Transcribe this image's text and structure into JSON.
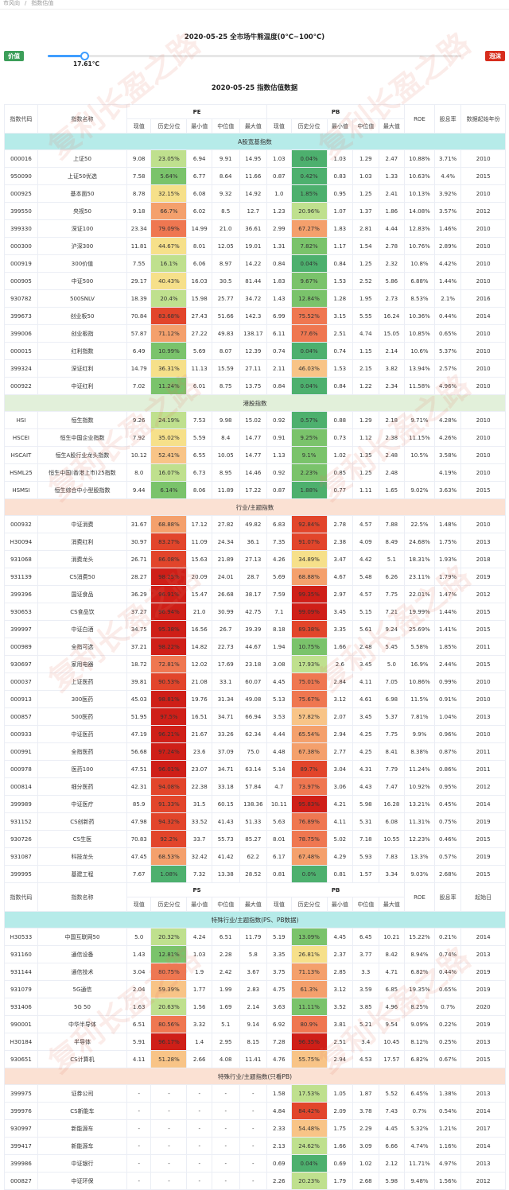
{
  "breadcrumb": {
    "home": "市风向",
    "sep": "/",
    "current": "指数估值"
  },
  "temperature": {
    "title": "2020-05-25 全市场牛熊温度(0°C~100°C)",
    "left_label": "价值",
    "right_label": "泡沫",
    "value_text": "17.61°C",
    "value": 17.61
  },
  "table_title": "2020-05-25 指数估值数据",
  "watermarks": [
    "复利长盈之路",
    "复利长盈之路",
    "复利长盈之路",
    "复利长盈之路",
    "复利长盈之路",
    "复利长盈之路",
    "复利长盈之路",
    "复利长盈之路"
  ],
  "colors": {
    "deep_green": "#4db06e",
    "green": "#7ac36b",
    "light_green": "#bfe08e",
    "yellow": "#f6e08a",
    "light_orange": "#f8c487",
    "orange": "#f4a06c",
    "light_red": "#ef7751",
    "red": "#e2452b",
    "deep_red": "#cf1f18"
  },
  "header1": {
    "code": "指数代码",
    "name": "指数名称",
    "pe": "PE",
    "pb": "PB",
    "roe": "ROE",
    "div": "股息率",
    "start": "数据起始年份"
  },
  "header_sub": [
    "现值",
    "历史分位",
    "最小值",
    "中位值",
    "最大值",
    "现值",
    "历史分位",
    "最小值",
    "中位值",
    "最大值"
  ],
  "header2": {
    "code": "指数代码",
    "name": "指数名称",
    "ps": "PS",
    "pb": "PB",
    "roe": "ROE",
    "div": "股息率",
    "start": "起始日"
  },
  "sections": [
    {
      "title": "A股宽基指数",
      "color": "cyan",
      "rows": [
        [
          "000016",
          "上证50",
          "9.08",
          "23.05%",
          "6.94",
          "9.91",
          "14.95",
          "1.03",
          "0.04%",
          "1.03",
          "1.29",
          "2.47",
          "10.88%",
          "3.71%",
          "2010"
        ],
        [
          "950090",
          "上证50优选",
          "7.58",
          "5.64%",
          "6.77",
          "8.64",
          "11.66",
          "0.87",
          "0.42%",
          "0.83",
          "1.03",
          "1.33",
          "10.63%",
          "4.4%",
          "2015"
        ],
        [
          "000925",
          "基本面50",
          "8.78",
          "32.15%",
          "6.08",
          "9.32",
          "14.92",
          "1.0",
          "1.85%",
          "0.95",
          "1.25",
          "2.41",
          "10.13%",
          "3.92%",
          "2010"
        ],
        [
          "399550",
          "央视50",
          "9.18",
          "66.7%",
          "6.02",
          "8.5",
          "12.7",
          "1.23",
          "20.96%",
          "1.07",
          "1.37",
          "1.86",
          "14.08%",
          "3.57%",
          "2012"
        ],
        [
          "399330",
          "深证100",
          "23.34",
          "79.09%",
          "14.99",
          "21.0",
          "36.61",
          "2.99",
          "67.27%",
          "1.83",
          "2.81",
          "4.44",
          "12.83%",
          "1.46%",
          "2010"
        ],
        [
          "000300",
          "沪深300",
          "11.81",
          "44.67%",
          "8.01",
          "12.05",
          "19.01",
          "1.31",
          "7.82%",
          "1.17",
          "1.54",
          "2.78",
          "10.76%",
          "2.89%",
          "2010"
        ],
        [
          "000919",
          "300价值",
          "7.55",
          "16.1%",
          "6.06",
          "8.97",
          "14.22",
          "0.84",
          "0.04%",
          "0.84",
          "1.25",
          "2.32",
          "10.8%",
          "4.42%",
          "2010"
        ],
        [
          "000905",
          "中证500",
          "29.17",
          "40.43%",
          "16.03",
          "30.5",
          "81.44",
          "1.83",
          "9.67%",
          "1.53",
          "2.52",
          "5.86",
          "6.88%",
          "1.44%",
          "2010"
        ],
        [
          "930782",
          "500SNLV",
          "18.39",
          "20.4%",
          "15.98",
          "25.77",
          "34.72",
          "1.43",
          "12.84%",
          "1.28",
          "1.95",
          "2.73",
          "8.53%",
          "2.1%",
          "2016"
        ],
        [
          "399673",
          "创业板50",
          "70.84",
          "83.68%",
          "27.43",
          "51.66",
          "142.3",
          "6.99",
          "75.52%",
          "3.15",
          "5.55",
          "16.24",
          "10.36%",
          "0.44%",
          "2014"
        ],
        [
          "399006",
          "创业板指",
          "57.87",
          "71.12%",
          "27.22",
          "49.83",
          "138.17",
          "6.11",
          "77.6%",
          "2.51",
          "4.74",
          "15.05",
          "10.85%",
          "0.65%",
          "2010"
        ],
        [
          "000015",
          "红利指数",
          "6.49",
          "10.99%",
          "5.69",
          "8.07",
          "12.39",
          "0.74",
          "0.04%",
          "0.74",
          "1.15",
          "2.14",
          "10.6%",
          "5.37%",
          "2010"
        ],
        [
          "399324",
          "深证红利",
          "14.79",
          "36.31%",
          "11.13",
          "15.59",
          "27.11",
          "2.11",
          "46.03%",
          "1.53",
          "2.15",
          "3.82",
          "13.94%",
          "2.57%",
          "2010"
        ],
        [
          "000922",
          "中证红利",
          "7.02",
          "11.24%",
          "6.01",
          "8.75",
          "13.75",
          "0.84",
          "0.04%",
          "0.84",
          "1.22",
          "2.34",
          "11.58%",
          "4.96%",
          "2010"
        ]
      ]
    },
    {
      "title": "港股指数",
      "color": "green",
      "rows": [
        [
          "HSI",
          "恒生指数",
          "9.26",
          "24.19%",
          "7.53",
          "9.98",
          "15.02",
          "0.92",
          "0.57%",
          "0.88",
          "1.29",
          "2.18",
          "9.71%",
          "4.28%",
          "2010"
        ],
        [
          "HSCEI",
          "恒生中国企业指数",
          "7.92",
          "35.02%",
          "5.59",
          "8.4",
          "14.77",
          "0.91",
          "9.25%",
          "0.73",
          "1.12",
          "2.38",
          "11.15%",
          "4.26%",
          "2010"
        ],
        [
          "HSCAIT",
          "恒生A股行业龙头指数",
          "10.12",
          "52.41%",
          "6.55",
          "10.05",
          "14.77",
          "1.13",
          "9.1%",
          "1.02",
          "1.35",
          "2.48",
          "10.5%",
          "3.58%",
          "2010"
        ],
        [
          "HSML25",
          "恒生中国(香港上市)25指数",
          "8.0",
          "16.07%",
          "6.73",
          "8.95",
          "14.46",
          "0.92",
          "2.23%",
          "0.85",
          "1.25",
          "2.48",
          "",
          "4.19%",
          "2010"
        ],
        [
          "HSMSI",
          "恒生综合中小型股指数",
          "9.44",
          "6.14%",
          "8.06",
          "11.89",
          "17.22",
          "0.87",
          "1.88%",
          "0.77",
          "1.11",
          "1.65",
          "9.02%",
          "3.63%",
          "2015"
        ]
      ]
    },
    {
      "title": "行业/主题指数",
      "color": "peach",
      "rows": [
        [
          "000932",
          "中证消费",
          "31.67",
          "68.88%",
          "17.12",
          "27.82",
          "49.82",
          "6.83",
          "92.84%",
          "2.78",
          "4.57",
          "7.88",
          "22.5%",
          "1.48%",
          "2010"
        ],
        [
          "H30094",
          "消费红利",
          "30.97",
          "83.27%",
          "11.09",
          "24.34",
          "36.1",
          "7.35",
          "91.07%",
          "2.38",
          "4.09",
          "8.49",
          "24.68%",
          "1.75%",
          "2013"
        ],
        [
          "931068",
          "消费龙头",
          "26.71",
          "86.08%",
          "15.63",
          "21.89",
          "27.13",
          "4.26",
          "34.89%",
          "3.47",
          "4.42",
          "5.1",
          "18.31%",
          "1.93%",
          "2018"
        ],
        [
          "931139",
          "CS消费50",
          "28.27",
          "98.25%",
          "20.09",
          "24.01",
          "28.7",
          "5.69",
          "68.88%",
          "4.67",
          "5.48",
          "6.26",
          "23.11%",
          "1.79%",
          "2019"
        ],
        [
          "399396",
          "国证食品",
          "36.29",
          "96.91%",
          "15.47",
          "26.68",
          "38.17",
          "7.59",
          "99.35%",
          "2.97",
          "4.57",
          "7.75",
          "22.01%",
          "1.47%",
          "2012"
        ],
        [
          "930653",
          "CS食品饮",
          "37.27",
          "96.94%",
          "21.0",
          "30.99",
          "42.75",
          "7.1",
          "99.09%",
          "3.45",
          "5.15",
          "7.21",
          "19.99%",
          "1.44%",
          "2015"
        ],
        [
          "399997",
          "中证白酒",
          "34.75",
          "95.38%",
          "16.56",
          "26.7",
          "39.39",
          "8.18",
          "89.38%",
          "3.35",
          "5.61",
          "9.24",
          "25.69%",
          "1.41%",
          "2015"
        ],
        [
          "000989",
          "全指可选",
          "37.21",
          "98.22%",
          "14.82",
          "22.73",
          "44.67",
          "1.94",
          "10.75%",
          "1.66",
          "2.48",
          "5.45",
          "5.58%",
          "1.85%",
          "2011"
        ],
        [
          "930697",
          "家用电器",
          "18.72",
          "72.81%",
          "12.02",
          "17.69",
          "23.18",
          "3.08",
          "17.93%",
          "2.6",
          "3.45",
          "5.0",
          "16.9%",
          "2.44%",
          "2015"
        ],
        [
          "000037",
          "上证医药",
          "39.81",
          "90.53%",
          "21.08",
          "33.1",
          "60.07",
          "4.45",
          "75.01%",
          "2.84",
          "4.11",
          "7.05",
          "10.86%",
          "0.99%",
          "2010"
        ],
        [
          "000913",
          "300医药",
          "45.03",
          "98.81%",
          "19.76",
          "31.34",
          "49.08",
          "5.13",
          "75.67%",
          "3.12",
          "4.61",
          "6.98",
          "11.5%",
          "0.91%",
          "2010"
        ],
        [
          "000857",
          "500医药",
          "51.95",
          "97.5%",
          "16.51",
          "34.71",
          "66.94",
          "3.53",
          "57.82%",
          "2.07",
          "3.45",
          "5.37",
          "7.81%",
          "1.04%",
          "2013"
        ],
        [
          "000933",
          "中证医药",
          "47.19",
          "96.21%",
          "21.67",
          "33.26",
          "62.34",
          "4.44",
          "65.54%",
          "2.94",
          "4.25",
          "7.75",
          "9.9%",
          "0.96%",
          "2010"
        ],
        [
          "000991",
          "全指医药",
          "56.68",
          "97.24%",
          "23.6",
          "37.09",
          "75.0",
          "4.48",
          "67.38%",
          "2.77",
          "4.25",
          "8.41",
          "8.38%",
          "0.87%",
          "2011"
        ],
        [
          "000978",
          "医药100",
          "47.51",
          "96.01%",
          "23.07",
          "34.71",
          "63.14",
          "5.14",
          "89.7%",
          "3.04",
          "4.31",
          "7.79",
          "11.24%",
          "0.86%",
          "2011"
        ],
        [
          "000814",
          "细分医药",
          "42.31",
          "94.08%",
          "22.38",
          "33.18",
          "57.84",
          "4.7",
          "73.97%",
          "3.06",
          "4.43",
          "7.47",
          "10.92%",
          "0.95%",
          "2012"
        ],
        [
          "399989",
          "中证医疗",
          "85.9",
          "91.33%",
          "31.5",
          "60.15",
          "138.36",
          "10.11",
          "95.83%",
          "4.21",
          "5.98",
          "16.28",
          "13.21%",
          "0.45%",
          "2014"
        ],
        [
          "931152",
          "CS创新药",
          "47.98",
          "94.32%",
          "33.52",
          "41.43",
          "51.33",
          "5.63",
          "76.89%",
          "4.11",
          "5.31",
          "6.08",
          "11.31%",
          "0.75%",
          "2019"
        ],
        [
          "930726",
          "CS生医",
          "70.83",
          "92.2%",
          "33.7",
          "55.73",
          "85.27",
          "8.01",
          "78.75%",
          "5.02",
          "7.18",
          "10.55",
          "12.23%",
          "0.46%",
          "2015"
        ],
        [
          "931087",
          "科技龙头",
          "47.45",
          "68.53%",
          "32.42",
          "41.42",
          "62.2",
          "6.17",
          "67.48%",
          "4.29",
          "5.93",
          "7.83",
          "13.3%",
          "0.57%",
          "2019"
        ],
        [
          "399995",
          "基建工程",
          "7.67",
          "1.08%",
          "7.32",
          "13.38",
          "28.52",
          "0.81",
          "0.0%",
          "0.81",
          "1.57",
          "3.34",
          "9.03%",
          "2.68%",
          "2015"
        ]
      ]
    },
    {
      "title": "特殊行业/主题指数(PS、PB数据)",
      "color": "cyan",
      "header2": true,
      "rows": [
        [
          "H30533",
          "中国互联网50",
          "5.0",
          "20.32%",
          "4.24",
          "6.51",
          "11.79",
          "5.19",
          "13.09%",
          "4.45",
          "6.45",
          "10.21",
          "15.22%",
          "0.21%",
          "2014"
        ],
        [
          "931160",
          "通信设备",
          "1.43",
          "12.81%",
          "1.03",
          "2.28",
          "5.8",
          "3.35",
          "26.81%",
          "2.37",
          "3.77",
          "8.42",
          "8.94%",
          "0.74%",
          "2013"
        ],
        [
          "931144",
          "通信技术",
          "3.04",
          "80.75%",
          "1.9",
          "2.42",
          "3.67",
          "3.75",
          "71.13%",
          "2.85",
          "3.3",
          "4.71",
          "6.82%",
          "0.44%",
          "2019"
        ],
        [
          "931079",
          "5G通信",
          "2.04",
          "59.39%",
          "1.77",
          "1.99",
          "2.83",
          "4.75",
          "61.3%",
          "3.12",
          "3.59",
          "6.85",
          "19.35%",
          "0.65%",
          "2019"
        ],
        [
          "931406",
          "5G 50",
          "1.63",
          "20.63%",
          "1.56",
          "1.69",
          "2.14",
          "3.63",
          "11.11%",
          "3.52",
          "3.85",
          "4.96",
          "8.25%",
          "0.7%",
          "2020"
        ],
        [
          "990001",
          "中华半导体",
          "6.51",
          "80.56%",
          "3.32",
          "5.1",
          "9.14",
          "6.92",
          "80.9%",
          "3.81",
          "5.21",
          "9.54",
          "9.09%",
          "0.22%",
          "2019"
        ],
        [
          "H30184",
          "半导体",
          "5.91",
          "96.17%",
          "1.4",
          "2.95",
          "8.15",
          "7.28",
          "96.35%",
          "2.51",
          "3.4",
          "10.45",
          "8.12%",
          "0.25%",
          "2013"
        ],
        [
          "930651",
          "CS计算机",
          "4.11",
          "51.28%",
          "2.66",
          "4.08",
          "11.41",
          "4.76",
          "55.75%",
          "2.94",
          "4.53",
          "17.57",
          "6.82%",
          "0.67%",
          "2015"
        ]
      ]
    },
    {
      "title": "特殊行业/主题指数(只看PB)",
      "color": "peach",
      "rows": [
        [
          "399975",
          "证券公司",
          "-",
          "-",
          "-",
          "-",
          "-",
          "1.58",
          "17.53%",
          "1.05",
          "1.87",
          "5.52",
          "6.45%",
          "1.38%",
          "2013"
        ],
        [
          "399976",
          "CS新能车",
          "-",
          "-",
          "-",
          "-",
          "-",
          "4.84",
          "84.42%",
          "2.09",
          "3.78",
          "7.43",
          "0.7%",
          "0.54%",
          "2014"
        ],
        [
          "930997",
          "新能源车",
          "-",
          "-",
          "-",
          "-",
          "-",
          "2.33",
          "54.48%",
          "1.75",
          "2.29",
          "4.45",
          "5.32%",
          "1.21%",
          "2017"
        ],
        [
          "399417",
          "新能源车",
          "-",
          "-",
          "-",
          "-",
          "-",
          "2.13",
          "24.62%",
          "1.66",
          "3.09",
          "6.66",
          "4.74%",
          "1.16%",
          "2014"
        ],
        [
          "399986",
          "中证银行",
          "-",
          "-",
          "-",
          "-",
          "-",
          "0.69",
          "0.04%",
          "0.69",
          "1.02",
          "2.12",
          "11.71%",
          "4.97%",
          "2013"
        ],
        [
          "000827",
          "中证环保",
          "-",
          "-",
          "-",
          "-",
          "-",
          "2.26",
          "20.23%",
          "1.79",
          "2.68",
          "5.98",
          "9.48%",
          "1.56%",
          "2012"
        ],
        [
          "399971",
          "中证传媒",
          "-",
          "-",
          "-",
          "-",
          "-",
          "2.86",
          "19.95%",
          "2.25",
          "4.06",
          "10.82",
          "4.27%",
          "1.08%",
          "2014"
        ]
      ]
    }
  ]
}
